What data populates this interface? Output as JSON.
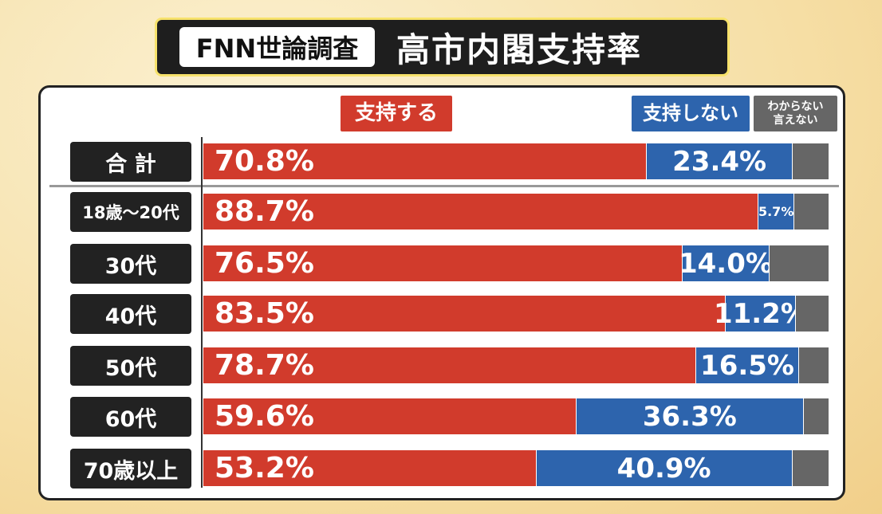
{
  "chart_data": {
    "type": "stacked-bar-horizontal",
    "title_tag": "FNN世論調査",
    "title": "高市内閣支持率",
    "categories": [
      "合 計",
      "18歳～20代",
      "30代",
      "40代",
      "50代",
      "60代",
      "70歳以上"
    ],
    "xlim": [
      0,
      100
    ],
    "series": [
      {
        "name": "支持する",
        "color": "#d13b2c",
        "values": [
          70.8,
          88.7,
          76.5,
          83.5,
          78.7,
          59.6,
          53.2
        ],
        "value_labels": [
          "70.8%",
          "88.7%",
          "76.5%",
          "83.5%",
          "78.7%",
          "59.6%",
          "53.2%"
        ]
      },
      {
        "name": "支持しない",
        "color": "#2d64ad",
        "values": [
          23.4,
          5.7,
          14.0,
          11.2,
          16.5,
          36.3,
          40.9
        ],
        "value_labels": [
          "23.4%",
          "5.7%",
          "14.0%",
          "11.2%",
          "16.5%",
          "36.3%",
          "40.9%"
        ]
      },
      {
        "name": "わからない\n言えない",
        "color": "#666666",
        "values": [
          5.8,
          5.6,
          9.5,
          5.3,
          4.8,
          4.1,
          5.9
        ]
      }
    ]
  }
}
